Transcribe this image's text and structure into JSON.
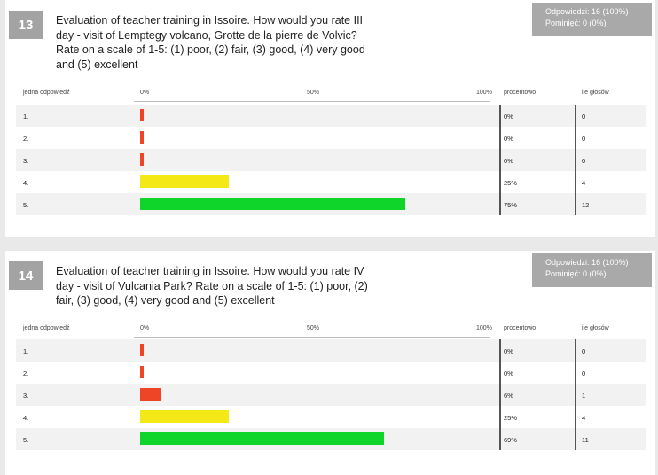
{
  "questions": [
    {
      "number": "13",
      "title": "Evaluation of teacher training in Issoire. How would you rate III day - visit of Lemptegy volcano, Grotte de la pierre de Volvic? Rate on a scale of 1-5: (1) poor, (2) fair, (3) good, (4) very good and (5) excellent",
      "stats": {
        "answered": "Odpowiedzi: 16 (100%)",
        "skipped": "Pominięć: 0 (0%)"
      },
      "headers": {
        "answer": "jedna odpowiedź",
        "pct0": "0%",
        "pct50": "50%",
        "pct100": "100%",
        "percent": "procentowo",
        "votes": "ile głosów"
      },
      "rows": [
        {
          "label": "1.",
          "percent": "0%",
          "votes": "0"
        },
        {
          "label": "2.",
          "percent": "0%",
          "votes": "0"
        },
        {
          "label": "3.",
          "percent": "0%",
          "votes": "0"
        },
        {
          "label": "4.",
          "percent": "25%",
          "votes": "4"
        },
        {
          "label": "5.",
          "percent": "75%",
          "votes": "12"
        }
      ]
    },
    {
      "number": "14",
      "title": "Evaluation of teacher training in Issoire. How would you rate IV day - visit of Vulcania Park? Rate on a scale of 1-5: (1) poor, (2) fair, (3) good, (4) very good and (5) excellent",
      "stats": {
        "answered": "Odpowiedzi: 16 (100%)",
        "skipped": "Pominięć: 0 (0%)"
      },
      "headers": {
        "answer": "jedna odpowiedź",
        "pct0": "0%",
        "pct50": "50%",
        "pct100": "100%",
        "percent": "procentowo",
        "votes": "ile głosów"
      },
      "rows": [
        {
          "label": "1.",
          "percent": "0%",
          "votes": "0"
        },
        {
          "label": "2.",
          "percent": "0%",
          "votes": "0"
        },
        {
          "label": "3.",
          "percent": "6%",
          "votes": "1"
        },
        {
          "label": "4.",
          "percent": "25%",
          "votes": "4"
        },
        {
          "label": "5.",
          "percent": "69%",
          "votes": "11"
        }
      ]
    }
  ],
  "colors": {
    "red": "#ee4526",
    "yellow": "#f5e817",
    "green": "#0fd52a",
    "badge": "#a3a3a3"
  },
  "chart_data": [
    {
      "type": "bar",
      "orientation": "horizontal",
      "categories": [
        "1.",
        "2.",
        "3.",
        "4.",
        "5."
      ],
      "values": [
        0,
        0,
        0,
        25,
        75
      ],
      "votes": [
        0,
        0,
        0,
        4,
        12
      ],
      "xlim": [
        0,
        100
      ],
      "bar_colors": [
        "#ee4526",
        "#ee4526",
        "#ee4526",
        "#f5e817",
        "#0fd52a"
      ]
    },
    {
      "type": "bar",
      "orientation": "horizontal",
      "categories": [
        "1.",
        "2.",
        "3.",
        "4.",
        "5."
      ],
      "values": [
        0,
        0,
        6,
        25,
        69
      ],
      "votes": [
        0,
        0,
        1,
        4,
        11
      ],
      "xlim": [
        0,
        100
      ],
      "bar_colors": [
        "#ee4526",
        "#ee4526",
        "#ee4526",
        "#f5e817",
        "#0fd52a"
      ]
    }
  ]
}
